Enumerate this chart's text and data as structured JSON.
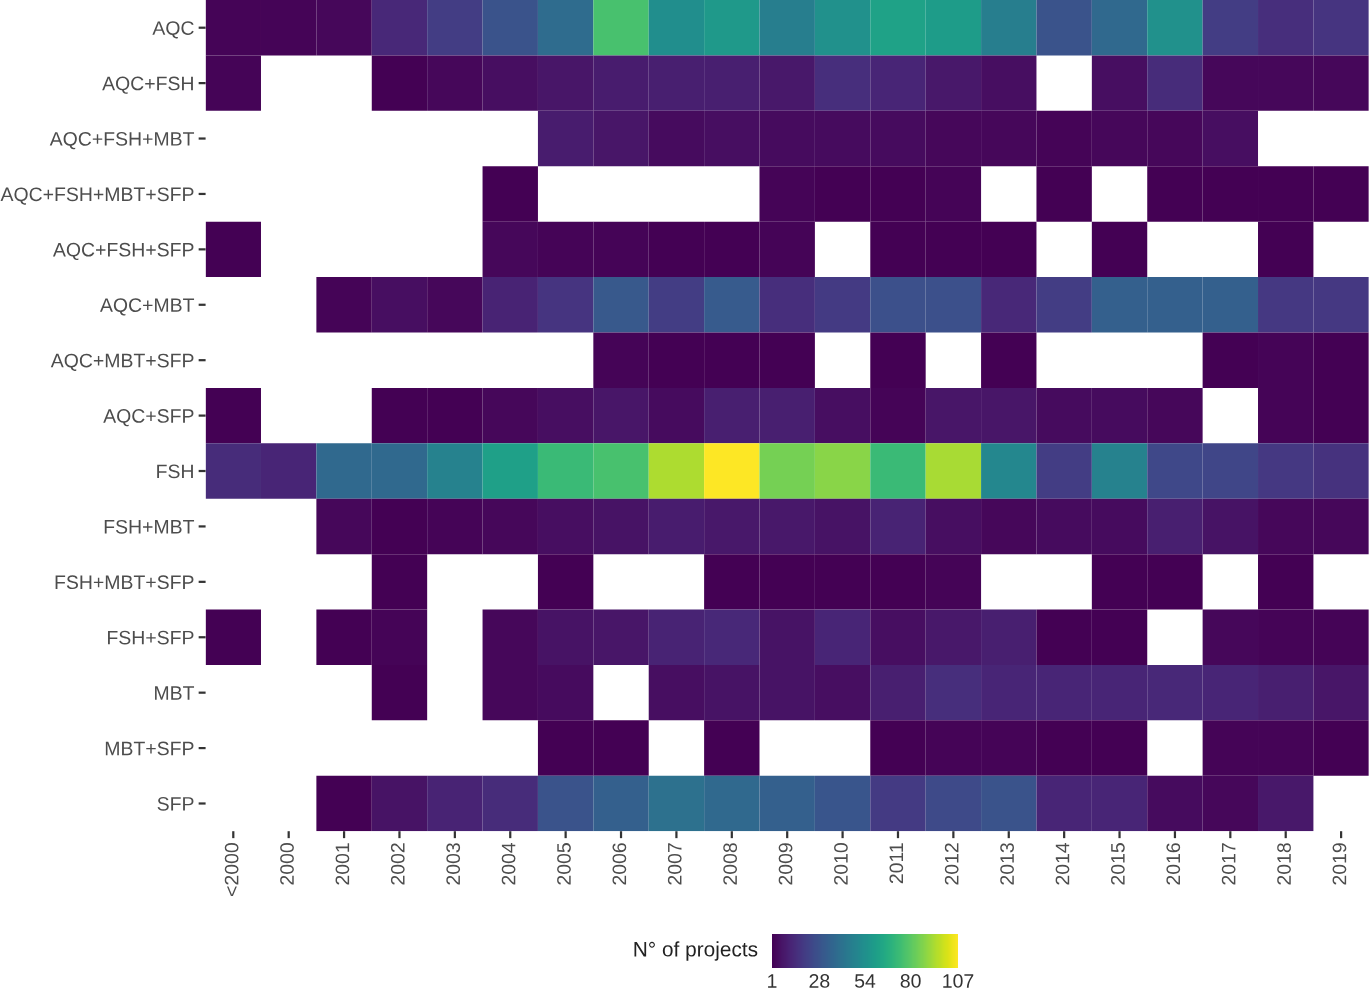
{
  "chart_data": {
    "type": "heatmap",
    "categories": [
      "<2000",
      "2000",
      "2001",
      "2002",
      "2003",
      "2004",
      "2005",
      "2006",
      "2007",
      "2008",
      "2009",
      "2010",
      "2011",
      "2012",
      "2013",
      "2014",
      "2015",
      "2016",
      "2017",
      "2018",
      "2019"
    ],
    "y_categories": [
      "AQC",
      "AQC+FSH",
      "AQC+FSH+MBT",
      "AQC+FSH+MBT+SFP",
      "AQC+FSH+SFP",
      "AQC+MBT",
      "AQC+MBT+SFP",
      "AQC+SFP",
      "FSH",
      "FSH+MBT",
      "FSH+MBT+SFP",
      "FSH+SFP",
      "MBT",
      "MBT+SFP",
      "SFP"
    ],
    "cells": [
      [
        2,
        2,
        3,
        13,
        20,
        28,
        38,
        76,
        53,
        58,
        46,
        54,
        62,
        59,
        46,
        28,
        37,
        54,
        20,
        15,
        17
      ],
      [
        2,
        null,
        null,
        1,
        3,
        5,
        7,
        9,
        10,
        10,
        8,
        15,
        12,
        8,
        5,
        null,
        5,
        14,
        3,
        3,
        3
      ],
      [
        null,
        null,
        null,
        null,
        null,
        null,
        9,
        7,
        4,
        5,
        4,
        4,
        4,
        3,
        3,
        2,
        3,
        3,
        5,
        null,
        null
      ],
      [
        null,
        null,
        null,
        null,
        null,
        1,
        null,
        null,
        null,
        null,
        2,
        1,
        1,
        2,
        null,
        1,
        null,
        1,
        1,
        1,
        1
      ],
      [
        1,
        null,
        null,
        null,
        null,
        3,
        2,
        2,
        1,
        1,
        2,
        null,
        1,
        1,
        1,
        null,
        1,
        null,
        null,
        1,
        null
      ],
      [
        null,
        null,
        2,
        5,
        3,
        11,
        17,
        30,
        20,
        31,
        15,
        19,
        27,
        27,
        13,
        20,
        33,
        33,
        33,
        18,
        18
      ],
      [
        null,
        null,
        null,
        null,
        null,
        null,
        null,
        2,
        1,
        1,
        1,
        null,
        1,
        null,
        1,
        null,
        null,
        null,
        1,
        2,
        1
      ],
      [
        1,
        null,
        null,
        1,
        1,
        3,
        5,
        7,
        4,
        10,
        10,
        5,
        2,
        7,
        7,
        4,
        4,
        3,
        null,
        2,
        1
      ],
      [
        14,
        12,
        37,
        37,
        48,
        61,
        73,
        76,
        94,
        107,
        85,
        88,
        73,
        93,
        50,
        20,
        48,
        24,
        23,
        18,
        16
      ],
      [
        null,
        null,
        3,
        1,
        2,
        3,
        5,
        6,
        9,
        8,
        8,
        6,
        11,
        5,
        3,
        4,
        4,
        10,
        6,
        3,
        3
      ],
      [
        null,
        null,
        null,
        1,
        null,
        null,
        1,
        null,
        null,
        1,
        1,
        1,
        1,
        2,
        null,
        null,
        1,
        1,
        null,
        1,
        null
      ],
      [
        1,
        null,
        1,
        2,
        null,
        3,
        6,
        7,
        11,
        13,
        6,
        12,
        5,
        8,
        10,
        1,
        1,
        null,
        3,
        2,
        2
      ],
      [
        null,
        null,
        null,
        1,
        null,
        3,
        4,
        null,
        5,
        6,
        6,
        5,
        10,
        15,
        12,
        12,
        12,
        13,
        12,
        10,
        7
      ],
      [
        null,
        null,
        null,
        null,
        null,
        null,
        1,
        1,
        null,
        1,
        null,
        null,
        1,
        2,
        2,
        1,
        1,
        null,
        2,
        2,
        1
      ],
      [
        null,
        null,
        1,
        6,
        11,
        14,
        28,
        33,
        40,
        37,
        33,
        29,
        19,
        25,
        28,
        12,
        12,
        4,
        3,
        8,
        null
      ]
    ],
    "clabel": "N° of projects",
    "clim": [
      1,
      107
    ],
    "cticks": [
      1,
      28,
      54,
      80,
      107
    ]
  }
}
